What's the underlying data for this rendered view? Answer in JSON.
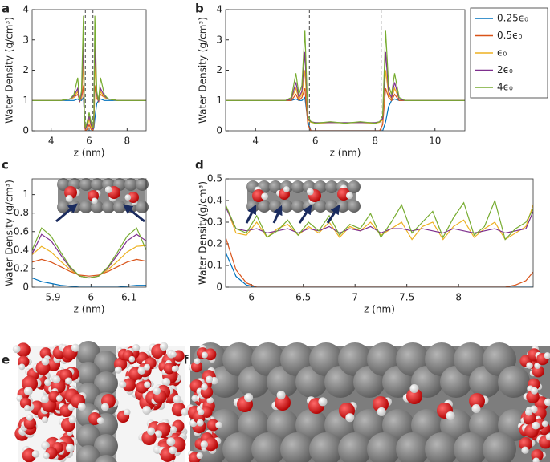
{
  "chart_data": [
    {
      "type": "line",
      "panel": "a",
      "x_label": "z (nm)",
      "y_label": "Water Density (g/cm³)",
      "xlim": [
        3,
        9
      ],
      "xticks": [
        4,
        6,
        8
      ],
      "ylim": [
        0,
        4
      ],
      "yticks": [
        0,
        1,
        2,
        3,
        4
      ],
      "vlines": [
        5.8,
        6.2
      ],
      "x": [
        3,
        3.5,
        4,
        4.5,
        5,
        5.2,
        5.4,
        5.5,
        5.6,
        5.7,
        5.75,
        5.8,
        5.9,
        6,
        6.1,
        6.2,
        6.25,
        6.3,
        6.4,
        6.5,
        6.6,
        6.8,
        7,
        7.5,
        8,
        8.5,
        9
      ],
      "series": [
        {
          "color": "#0072bd",
          "values": [
            1,
            1,
            1,
            1,
            1,
            1,
            1.05,
            1,
            1,
            1.1,
            0.5,
            0,
            0,
            0,
            0,
            0,
            0.1,
            0.4,
            0.9,
            1,
            1.05,
            1,
            1,
            1,
            1,
            1,
            1
          ]
        },
        {
          "color": "#d95319",
          "values": [
            1,
            1,
            1,
            1,
            1.05,
            1.1,
            1.2,
            1,
            1.05,
            1.5,
            0.2,
            0,
            0.05,
            0.2,
            0.05,
            0,
            0.2,
            1.5,
            1.05,
            1,
            1.2,
            1.1,
            1.05,
            1,
            1,
            1,
            1
          ]
        },
        {
          "color": "#edb120",
          "values": [
            1,
            1,
            1,
            1,
            1.05,
            1.1,
            1.3,
            0.95,
            1.1,
            2.3,
            0.3,
            0.05,
            0.1,
            0.4,
            0.1,
            0.05,
            0.3,
            2.3,
            1.1,
            0.95,
            1.3,
            1.1,
            1.05,
            1,
            1,
            1,
            1
          ]
        },
        {
          "color": "#7e2f8e",
          "values": [
            1,
            1,
            1,
            1,
            1.05,
            1.15,
            1.4,
            0.95,
            1.2,
            3.0,
            0.4,
            0.05,
            0.2,
            0.5,
            0.2,
            0.05,
            0.4,
            3.0,
            1.2,
            0.95,
            1.4,
            1.15,
            1.05,
            1,
            1,
            1,
            1
          ]
        },
        {
          "color": "#77ac30",
          "values": [
            1,
            1,
            1,
            1,
            1.05,
            1.2,
            1.75,
            1,
            1.3,
            3.8,
            0.5,
            0.1,
            0.3,
            0.6,
            0.3,
            0.1,
            0.5,
            3.8,
            1.3,
            1,
            1.75,
            1.2,
            1.05,
            1,
            1,
            1,
            1
          ]
        }
      ]
    },
    {
      "type": "line",
      "panel": "b",
      "x_label": "z (nm)",
      "y_label": "Water Density (g/cm³)",
      "xlim": [
        3,
        11
      ],
      "xticks": [
        4,
        6,
        8,
        10
      ],
      "ylim": [
        0,
        4
      ],
      "yticks": [
        0,
        1,
        2,
        3,
        4
      ],
      "vlines": [
        5.8,
        8.2
      ],
      "legend": "outside-right",
      "x": [
        3,
        4,
        5,
        5.2,
        5.35,
        5.45,
        5.55,
        5.65,
        5.75,
        5.85,
        6,
        6.5,
        7,
        7.5,
        8,
        8.15,
        8.25,
        8.35,
        8.45,
        8.55,
        8.65,
        8.8,
        9,
        10,
        11
      ],
      "series": [
        {
          "name": "0.25ϵ₀",
          "color": "#0072bd",
          "values": [
            1,
            1,
            1,
            1,
            1.05,
            1,
            1,
            1.1,
            0.3,
            0,
            0,
            0,
            0,
            0,
            0,
            0,
            0,
            0.3,
            0.8,
            1,
            1.05,
            1,
            1,
            1,
            1
          ]
        },
        {
          "name": "0.5ϵ₀",
          "color": "#d95319",
          "values": [
            1,
            1,
            1,
            1,
            1.2,
            1,
            1.1,
            1.4,
            0.2,
            0,
            0,
            0,
            0,
            0,
            0,
            0,
            0.2,
            1.4,
            1.1,
            1,
            1.2,
            1,
            1,
            1,
            1
          ]
        },
        {
          "name": "ϵ₀",
          "color": "#edb120",
          "values": [
            1,
            1,
            1,
            1.05,
            1.4,
            1.05,
            1.2,
            2.0,
            0.35,
            0.28,
            0.25,
            0.27,
            0.26,
            0.27,
            0.25,
            0.28,
            0.35,
            2.0,
            1.2,
            1.05,
            1.4,
            1.05,
            1,
            1,
            1
          ]
        },
        {
          "name": "2ϵ₀",
          "color": "#7e2f8e",
          "values": [
            1,
            1,
            1,
            1.05,
            1.6,
            1.1,
            1.3,
            2.6,
            0.4,
            0.3,
            0.27,
            0.27,
            0.27,
            0.27,
            0.27,
            0.3,
            0.4,
            2.6,
            1.3,
            1.1,
            1.6,
            1.05,
            1,
            1,
            1
          ]
        },
        {
          "name": "4ϵ₀",
          "color": "#77ac30",
          "values": [
            1,
            1,
            1,
            1.1,
            1.9,
            1.2,
            1.5,
            3.3,
            0.5,
            0.3,
            0.25,
            0.3,
            0.25,
            0.3,
            0.25,
            0.3,
            0.5,
            3.3,
            1.5,
            1.2,
            1.9,
            1.1,
            1,
            1,
            1
          ]
        }
      ]
    },
    {
      "type": "line",
      "panel": "c",
      "x_label": "z (nm)",
      "y_label": "Water Density (g/cm³)",
      "xlim": [
        5.845,
        6.145
      ],
      "xticks": [
        5.9,
        6,
        6.1
      ],
      "ylim": [
        0,
        1.17
      ],
      "yticks": [
        0,
        0.2,
        0.4,
        0.6,
        0.8,
        1
      ],
      "x": [
        5.845,
        5.87,
        5.895,
        5.92,
        5.945,
        5.97,
        5.995,
        6.02,
        6.045,
        6.07,
        6.095,
        6.12,
        6.145
      ],
      "series": [
        {
          "color": "#0072bd",
          "values": [
            0.1,
            0.06,
            0.04,
            0.02,
            0.01,
            0,
            0,
            0,
            0,
            0,
            0.01,
            0.02,
            0.02
          ]
        },
        {
          "color": "#d95319",
          "values": [
            0.27,
            0.3,
            0.27,
            0.22,
            0.17,
            0.13,
            0.12,
            0.13,
            0.17,
            0.22,
            0.27,
            0.3,
            0.28
          ]
        },
        {
          "color": "#edb120",
          "values": [
            0.35,
            0.44,
            0.38,
            0.28,
            0.19,
            0.12,
            0.1,
            0.12,
            0.19,
            0.28,
            0.38,
            0.44,
            0.45
          ]
        },
        {
          "color": "#7e2f8e",
          "values": [
            0.36,
            0.57,
            0.5,
            0.35,
            0.21,
            0.12,
            0.1,
            0.12,
            0.21,
            0.35,
            0.5,
            0.57,
            0.5
          ]
        },
        {
          "color": "#77ac30",
          "values": [
            0.4,
            0.64,
            0.55,
            0.38,
            0.22,
            0.12,
            0.1,
            0.12,
            0.22,
            0.38,
            0.55,
            0.64,
            0.4
          ]
        }
      ]
    },
    {
      "type": "line",
      "panel": "d",
      "x_label": "z (nm)",
      "y_label": "Water Density(g/cm³)",
      "xlim": [
        5.75,
        8.72
      ],
      "xticks": [
        6,
        6.5,
        7,
        7.5,
        8
      ],
      "ylim": [
        0,
        0.5
      ],
      "yticks": [
        0,
        0.1,
        0.2,
        0.3,
        0.4,
        0.5
      ],
      "x": [
        5.75,
        5.85,
        5.95,
        6.05,
        6.15,
        6.25,
        6.35,
        6.45,
        6.55,
        6.65,
        6.75,
        6.85,
        6.95,
        7.05,
        7.15,
        7.25,
        7.35,
        7.45,
        7.55,
        7.65,
        7.75,
        7.85,
        7.95,
        8.05,
        8.15,
        8.25,
        8.35,
        8.45,
        8.55,
        8.65,
        8.72
      ],
      "series": [
        {
          "color": "#0072bd",
          "values": [
            0.16,
            0.05,
            0.01,
            0,
            0,
            0,
            0,
            0,
            0,
            0,
            0,
            0,
            0,
            0,
            0,
            0,
            0,
            0,
            0,
            0,
            0,
            0,
            0,
            0,
            0,
            0,
            0,
            0,
            0,
            0,
            0
          ]
        },
        {
          "color": "#d95319",
          "values": [
            0.23,
            0.08,
            0.02,
            0,
            0,
            0,
            0,
            0,
            0,
            0,
            0,
            0,
            0,
            0,
            0,
            0,
            0,
            0,
            0,
            0,
            0,
            0,
            0,
            0,
            0,
            0,
            0,
            0,
            0.01,
            0.03,
            0.07
          ]
        },
        {
          "color": "#edb120",
          "values": [
            0.38,
            0.25,
            0.24,
            0.3,
            0.23,
            0.27,
            0.29,
            0.24,
            0.28,
            0.25,
            0.3,
            0.23,
            0.28,
            0.26,
            0.3,
            0.24,
            0.27,
            0.3,
            0.22,
            0.28,
            0.3,
            0.22,
            0.28,
            0.31,
            0.23,
            0.27,
            0.3,
            0.22,
            0.25,
            0.28,
            0.38
          ]
        },
        {
          "color": "#7e2f8e",
          "values": [
            0.37,
            0.27,
            0.26,
            0.27,
            0.25,
            0.26,
            0.27,
            0.25,
            0.27,
            0.26,
            0.28,
            0.25,
            0.27,
            0.26,
            0.28,
            0.25,
            0.27,
            0.27,
            0.26,
            0.27,
            0.26,
            0.25,
            0.27,
            0.26,
            0.25,
            0.26,
            0.27,
            0.25,
            0.26,
            0.27,
            0.35
          ]
        },
        {
          "color": "#77ac30",
          "values": [
            0.38,
            0.27,
            0.25,
            0.33,
            0.23,
            0.26,
            0.31,
            0.24,
            0.3,
            0.26,
            0.33,
            0.24,
            0.29,
            0.27,
            0.34,
            0.23,
            0.3,
            0.38,
            0.25,
            0.3,
            0.35,
            0.23,
            0.32,
            0.39,
            0.24,
            0.28,
            0.4,
            0.22,
            0.27,
            0.3,
            0.36
          ]
        }
      ]
    }
  ],
  "images": [
    {
      "panel": "e"
    },
    {
      "panel": "f"
    }
  ]
}
